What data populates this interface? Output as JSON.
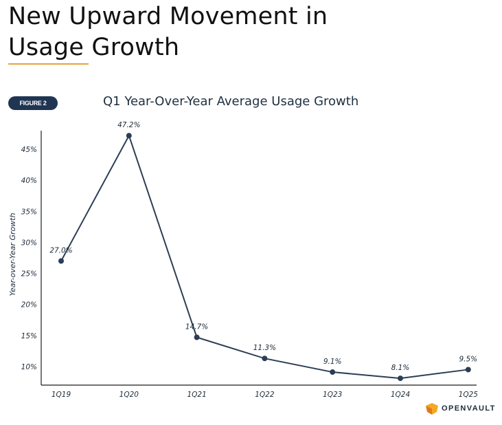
{
  "page": {
    "title_line1": "New Upward Movement in",
    "title_line2": "Usage Growth",
    "figure_badge": "FIGURE 2",
    "accent_color": "#e8a33d",
    "badge_color": "#1f3552"
  },
  "chart_data": {
    "type": "line",
    "title": "Q1 Year-Over-Year Average Usage Growth",
    "xlabel": "",
    "ylabel": "Year-over-Year Growth",
    "categories": [
      "1Q19",
      "1Q20",
      "1Q21",
      "1Q22",
      "1Q23",
      "1Q24",
      "1Q25"
    ],
    "series": [
      {
        "values": [
          27.0,
          47.2,
          14.7,
          11.3,
          9.1,
          8.1,
          9.5
        ],
        "labels": [
          "27.0%",
          "47.2%",
          "14.7%",
          "11.3%",
          "9.1%",
          "8.1%",
          "9.5%"
        ],
        "color": "#2c3e55"
      }
    ],
    "ylim": [
      7,
      48
    ],
    "yticks": [
      10,
      15,
      20,
      25,
      30,
      35,
      40,
      45
    ],
    "ytick_labels": [
      "10%",
      "15%",
      "20%",
      "25%",
      "30%",
      "35%",
      "40%",
      "45%"
    ],
    "grid": false,
    "legend": "none"
  },
  "logo": {
    "text": "OPENVAULT",
    "icon": "openvault-logo-icon",
    "colors": [
      "#f5a623",
      "#e07b18"
    ]
  }
}
